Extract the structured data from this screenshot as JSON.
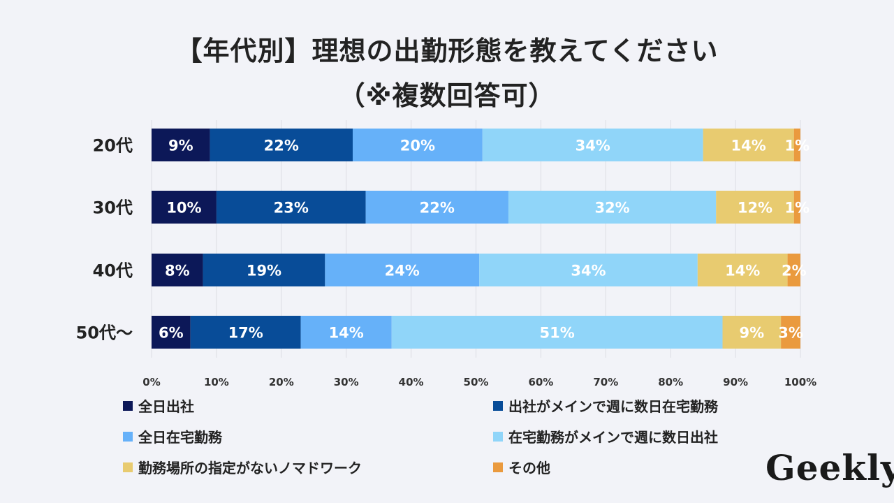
{
  "chart_data": {
    "type": "bar",
    "orientation": "horizontal",
    "stacked": true,
    "title": "【年代別】理想の出勤形態を教えてください",
    "subtitle": "（※複数回答可）",
    "categories": [
      "20代",
      "30代",
      "40代",
      "50代〜"
    ],
    "series": [
      {
        "name": "全日出社",
        "color": "#0c1858",
        "values": [
          9,
          10,
          8,
          6
        ]
      },
      {
        "name": "出社がメインで週に数日在宅勤務",
        "color": "#084c98",
        "values": [
          22,
          23,
          19,
          17
        ]
      },
      {
        "name": "全日在宅勤務",
        "color": "#66b1f9",
        "values": [
          20,
          22,
          24,
          14
        ]
      },
      {
        "name": "在宅勤務がメインで週に数日出社",
        "color": "#90d5f9",
        "values": [
          34,
          32,
          34,
          51
        ]
      },
      {
        "name": "勤務場所の指定がないノマドワーク",
        "color": "#e8cb70",
        "values": [
          14,
          12,
          14,
          9
        ]
      },
      {
        "name": "その他",
        "color": "#ea9a3e",
        "values": [
          1,
          1,
          2,
          3
        ]
      }
    ],
    "xlim": [
      0,
      100
    ],
    "xticks": [
      "0%",
      "10%",
      "20%",
      "30%",
      "40%",
      "50%",
      "60%",
      "70%",
      "80%",
      "90%",
      "100%"
    ],
    "value_suffix": "%",
    "grid": true,
    "legend_position": "bottom"
  },
  "logo": "Geekly"
}
